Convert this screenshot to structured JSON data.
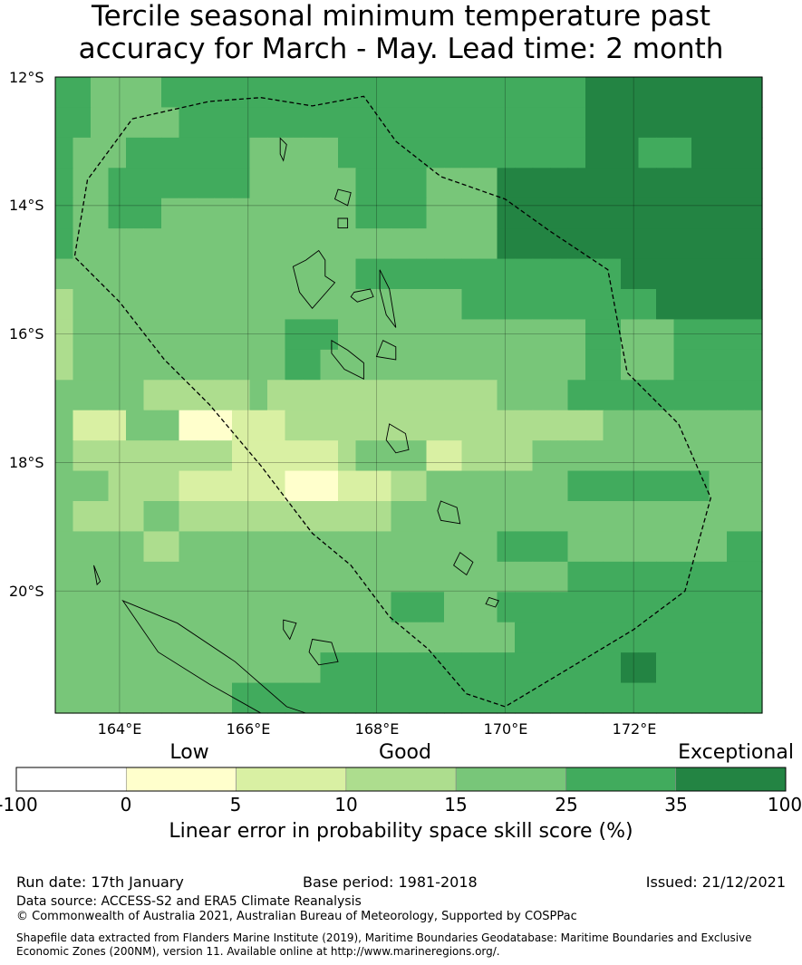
{
  "title": {
    "line1": "Tercile seasonal minimum temperature past",
    "line2": "accuracy for March - May. Lead time: 2 month"
  },
  "map": {
    "lon_range": [
      163,
      174
    ],
    "lat_range": [
      -21.9,
      -12
    ],
    "lat_labels": [
      "12°S",
      "14°S",
      "16°S",
      "18°S",
      "20°S"
    ],
    "lon_labels": [
      "164°E",
      "166°E",
      "168°E",
      "170°E",
      "172°E"
    ],
    "colors": [
      "#ffffff",
      "#ffffcc",
      "#d9f0a3",
      "#addd8e",
      "#78c679",
      "#41ab5d",
      "#238443"
    ],
    "grid": [
      [
        5,
        5,
        4,
        4,
        4,
        4,
        5,
        5,
        5,
        5,
        5,
        5,
        5,
        5,
        5,
        5,
        5,
        5,
        5,
        5,
        5,
        5,
        5,
        5,
        5,
        5,
        5,
        5,
        5,
        5,
        6,
        6,
        6,
        6,
        6,
        6,
        6,
        6,
        6,
        6
      ],
      [
        5,
        5,
        4,
        4,
        4,
        4,
        4,
        5,
        5,
        5,
        5,
        5,
        5,
        5,
        5,
        5,
        5,
        5,
        5,
        5,
        5,
        5,
        5,
        5,
        5,
        5,
        5,
        5,
        5,
        5,
        6,
        6,
        6,
        6,
        6,
        6,
        6,
        6,
        6,
        6
      ],
      [
        5,
        4,
        4,
        4,
        5,
        5,
        5,
        5,
        5,
        5,
        5,
        4,
        4,
        4,
        4,
        4,
        5,
        5,
        5,
        5,
        5,
        5,
        5,
        5,
        5,
        5,
        5,
        5,
        5,
        5,
        6,
        6,
        6,
        5,
        5,
        5,
        6,
        6,
        6,
        6
      ],
      [
        5,
        4,
        4,
        5,
        5,
        5,
        5,
        5,
        5,
        5,
        5,
        4,
        4,
        4,
        4,
        4,
        4,
        5,
        5,
        5,
        5,
        4,
        4,
        4,
        4,
        6,
        6,
        6,
        6,
        6,
        6,
        6,
        6,
        6,
        6,
        6,
        6,
        6,
        6,
        6
      ],
      [
        5,
        4,
        4,
        5,
        5,
        5,
        4,
        4,
        4,
        4,
        4,
        4,
        4,
        4,
        4,
        4,
        4,
        5,
        5,
        5,
        5,
        4,
        4,
        4,
        4,
        6,
        6,
        6,
        6,
        6,
        6,
        6,
        6,
        6,
        6,
        6,
        6,
        6,
        6,
        6
      ],
      [
        5,
        4,
        4,
        4,
        4,
        4,
        4,
        4,
        4,
        4,
        4,
        4,
        4,
        4,
        4,
        4,
        4,
        4,
        4,
        4,
        4,
        4,
        4,
        4,
        4,
        6,
        6,
        6,
        6,
        6,
        6,
        6,
        6,
        6,
        6,
        6,
        6,
        6,
        6,
        6
      ],
      [
        4,
        4,
        4,
        4,
        4,
        4,
        4,
        4,
        4,
        4,
        4,
        4,
        4,
        4,
        4,
        4,
        4,
        5,
        5,
        5,
        5,
        5,
        5,
        5,
        5,
        5,
        5,
        5,
        5,
        5,
        5,
        5,
        6,
        6,
        6,
        6,
        6,
        6,
        6,
        6
      ],
      [
        3,
        4,
        4,
        4,
        4,
        4,
        4,
        4,
        4,
        4,
        4,
        4,
        4,
        4,
        4,
        4,
        4,
        4,
        4,
        4,
        4,
        4,
        4,
        5,
        5,
        5,
        5,
        5,
        5,
        5,
        5,
        5,
        5,
        5,
        6,
        6,
        6,
        6,
        6,
        6
      ],
      [
        3,
        4,
        4,
        4,
        4,
        4,
        4,
        4,
        4,
        4,
        4,
        4,
        4,
        5,
        5,
        5,
        4,
        4,
        4,
        4,
        4,
        4,
        4,
        4,
        4,
        4,
        4,
        4,
        4,
        4,
        5,
        5,
        4,
        4,
        4,
        5,
        5,
        5,
        5,
        5
      ],
      [
        3,
        4,
        4,
        4,
        4,
        4,
        4,
        4,
        4,
        4,
        4,
        4,
        4,
        5,
        5,
        4,
        4,
        4,
        4,
        4,
        4,
        4,
        4,
        4,
        4,
        4,
        4,
        4,
        4,
        4,
        5,
        5,
        4,
        4,
        4,
        5,
        5,
        5,
        5,
        5
      ],
      [
        4,
        4,
        4,
        4,
        4,
        3,
        3,
        3,
        3,
        3,
        3,
        4,
        3,
        3,
        3,
        3,
        3,
        3,
        3,
        3,
        3,
        3,
        3,
        3,
        3,
        4,
        4,
        4,
        4,
        5,
        5,
        5,
        5,
        5,
        5,
        5,
        5,
        5,
        5,
        5
      ],
      [
        4,
        2,
        2,
        2,
        4,
        4,
        4,
        1,
        1,
        1,
        2,
        2,
        2,
        3,
        3,
        3,
        3,
        3,
        3,
        3,
        3,
        3,
        3,
        3,
        3,
        3,
        3,
        3,
        3,
        3,
        3,
        4,
        4,
        4,
        4,
        4,
        4,
        4,
        4,
        4
      ],
      [
        4,
        3,
        3,
        3,
        3,
        3,
        3,
        3,
        3,
        3,
        2,
        2,
        2,
        2,
        2,
        2,
        3,
        4,
        4,
        4,
        4,
        2,
        2,
        3,
        3,
        3,
        3,
        4,
        4,
        4,
        4,
        4,
        4,
        4,
        4,
        4,
        4,
        4,
        4,
        4
      ],
      [
        4,
        4,
        4,
        3,
        3,
        3,
        3,
        2,
        2,
        2,
        2,
        2,
        2,
        1,
        1,
        1,
        2,
        2,
        2,
        3,
        3,
        4,
        4,
        4,
        4,
        4,
        4,
        4,
        4,
        5,
        5,
        5,
        5,
        5,
        5,
        5,
        5,
        4,
        4,
        4
      ],
      [
        4,
        3,
        3,
        3,
        3,
        4,
        4,
        3,
        3,
        3,
        3,
        3,
        3,
        3,
        3,
        3,
        3,
        3,
        3,
        4,
        4,
        4,
        4,
        4,
        4,
        4,
        4,
        4,
        4,
        4,
        4,
        4,
        4,
        4,
        4,
        4,
        4,
        4,
        4,
        4
      ],
      [
        4,
        4,
        4,
        4,
        4,
        3,
        3,
        4,
        4,
        4,
        4,
        4,
        4,
        4,
        4,
        4,
        4,
        4,
        4,
        4,
        4,
        4,
        4,
        4,
        4,
        5,
        5,
        5,
        5,
        4,
        4,
        4,
        4,
        4,
        4,
        4,
        4,
        4,
        5,
        5
      ],
      [
        4,
        4,
        4,
        4,
        4,
        4,
        4,
        4,
        4,
        4,
        4,
        4,
        4,
        4,
        4,
        4,
        4,
        4,
        4,
        4,
        4,
        4,
        4,
        4,
        4,
        4,
        4,
        4,
        4,
        5,
        5,
        5,
        5,
        5,
        5,
        5,
        5,
        5,
        5,
        5
      ],
      [
        4,
        4,
        4,
        4,
        4,
        4,
        4,
        4,
        4,
        4,
        4,
        4,
        4,
        4,
        4,
        4,
        4,
        4,
        4,
        5,
        5,
        5,
        4,
        4,
        4,
        5,
        5,
        5,
        5,
        5,
        5,
        5,
        5,
        5,
        5,
        5,
        5,
        5,
        5,
        5
      ],
      [
        4,
        4,
        4,
        4,
        4,
        4,
        4,
        4,
        4,
        4,
        4,
        4,
        4,
        4,
        4,
        4,
        4,
        4,
        4,
        4,
        4,
        4,
        4,
        4,
        4,
        4,
        5,
        5,
        5,
        5,
        5,
        5,
        5,
        5,
        5,
        5,
        5,
        5,
        5,
        5
      ],
      [
        4,
        4,
        4,
        4,
        4,
        4,
        4,
        4,
        4,
        4,
        4,
        4,
        4,
        4,
        4,
        5,
        5,
        5,
        5,
        5,
        5,
        5,
        5,
        5,
        5,
        5,
        5,
        5,
        5,
        5,
        5,
        5,
        6,
        6,
        5,
        5,
        5,
        5,
        5,
        5
      ],
      [
        4,
        4,
        4,
        4,
        4,
        4,
        4,
        4,
        4,
        4,
        5,
        5,
        5,
        5,
        5,
        5,
        5,
        5,
        5,
        5,
        5,
        5,
        5,
        5,
        5,
        5,
        5,
        5,
        5,
        5,
        5,
        5,
        5,
        5,
        5,
        5,
        5,
        5,
        5,
        5
      ]
    ],
    "eez_boundary": [
      [
        164.2,
        -12.65
      ],
      [
        165.4,
        -12.38
      ],
      [
        166.2,
        -12.32
      ],
      [
        167.0,
        -12.45
      ],
      [
        167.8,
        -12.3
      ],
      [
        168.3,
        -13.0
      ],
      [
        169.0,
        -13.55
      ],
      [
        170.0,
        -13.9
      ],
      [
        170.7,
        -14.4
      ],
      [
        171.6,
        -15.0
      ],
      [
        171.9,
        -16.6
      ],
      [
        172.7,
        -17.4
      ],
      [
        173.2,
        -18.55
      ],
      [
        172.8,
        -20.0
      ],
      [
        172.0,
        -20.6
      ],
      [
        171.0,
        -21.2
      ],
      [
        170.0,
        -21.8
      ],
      [
        169.4,
        -21.6
      ],
      [
        168.8,
        -20.9
      ],
      [
        168.2,
        -20.4
      ],
      [
        167.6,
        -19.6
      ],
      [
        167.0,
        -19.1
      ],
      [
        166.2,
        -18.05
      ],
      [
        165.4,
        -17.1
      ],
      [
        164.7,
        -16.4
      ],
      [
        164.0,
        -15.5
      ],
      [
        163.3,
        -14.8
      ],
      [
        163.5,
        -13.6
      ],
      [
        164.2,
        -12.65
      ]
    ],
    "islands": [
      [
        [
          167.1,
          -14.7
        ],
        [
          167.2,
          -14.85
        ],
        [
          167.2,
          -15.1
        ],
        [
          167.35,
          -15.2
        ],
        [
          167.0,
          -15.6
        ],
        [
          166.8,
          -15.35
        ],
        [
          166.7,
          -14.95
        ],
        [
          166.9,
          -14.85
        ],
        [
          167.1,
          -14.7
        ]
      ],
      [
        [
          168.05,
          -15.0
        ],
        [
          168.2,
          -15.3
        ],
        [
          168.3,
          -15.9
        ],
        [
          168.15,
          -15.7
        ],
        [
          168.05,
          -15.3
        ],
        [
          168.05,
          -15.0
        ]
      ],
      [
        [
          167.65,
          -15.35
        ],
        [
          167.9,
          -15.3
        ],
        [
          167.95,
          -15.42
        ],
        [
          167.7,
          -15.5
        ],
        [
          167.6,
          -15.42
        ],
        [
          167.65,
          -15.35
        ]
      ],
      [
        [
          167.3,
          -16.1
        ],
        [
          167.55,
          -16.25
        ],
        [
          167.8,
          -16.45
        ],
        [
          167.8,
          -16.7
        ],
        [
          167.5,
          -16.55
        ],
        [
          167.3,
          -16.3
        ],
        [
          167.3,
          -16.1
        ]
      ],
      [
        [
          168.1,
          -16.1
        ],
        [
          168.3,
          -16.2
        ],
        [
          168.3,
          -16.4
        ],
        [
          168.0,
          -16.35
        ],
        [
          168.1,
          -16.1
        ]
      ],
      [
        [
          168.2,
          -17.4
        ],
        [
          168.45,
          -17.55
        ],
        [
          168.5,
          -17.8
        ],
        [
          168.3,
          -17.85
        ],
        [
          168.15,
          -17.65
        ],
        [
          168.2,
          -17.4
        ]
      ],
      [
        [
          169.0,
          -18.6
        ],
        [
          169.25,
          -18.7
        ],
        [
          169.3,
          -18.95
        ],
        [
          169.0,
          -18.9
        ],
        [
          168.95,
          -18.75
        ],
        [
          169.0,
          -18.6
        ]
      ],
      [
        [
          169.3,
          -19.4
        ],
        [
          169.5,
          -19.55
        ],
        [
          169.4,
          -19.75
        ],
        [
          169.2,
          -19.6
        ],
        [
          169.3,
          -19.4
        ]
      ],
      [
        [
          169.75,
          -20.1
        ],
        [
          169.9,
          -20.15
        ],
        [
          169.85,
          -20.25
        ],
        [
          169.7,
          -20.2
        ],
        [
          169.75,
          -20.1
        ]
      ],
      [
        [
          166.5,
          -12.95
        ],
        [
          166.6,
          -13.05
        ],
        [
          166.55,
          -13.3
        ],
        [
          166.5,
          -13.2
        ],
        [
          166.5,
          -12.95
        ]
      ],
      [
        [
          167.4,
          -13.75
        ],
        [
          167.6,
          -13.8
        ],
        [
          167.55,
          -14.0
        ],
        [
          167.35,
          -13.9
        ],
        [
          167.4,
          -13.75
        ]
      ],
      [
        [
          167.4,
          -14.2
        ],
        [
          167.55,
          -14.2
        ],
        [
          167.55,
          -14.35
        ],
        [
          167.4,
          -14.35
        ],
        [
          167.4,
          -14.2
        ]
      ],
      [
        [
          164.05,
          -20.15
        ],
        [
          164.9,
          -20.5
        ],
        [
          165.8,
          -21.1
        ],
        [
          166.6,
          -21.8
        ],
        [
          166.9,
          -21.9
        ],
        [
          166.2,
          -21.9
        ],
        [
          165.4,
          -21.45
        ],
        [
          164.6,
          -20.95
        ],
        [
          164.05,
          -20.15
        ]
      ],
      [
        [
          166.55,
          -20.45
        ],
        [
          166.75,
          -20.5
        ],
        [
          166.65,
          -20.75
        ],
        [
          166.55,
          -20.6
        ],
        [
          166.55,
          -20.45
        ]
      ],
      [
        [
          167.0,
          -20.75
        ],
        [
          167.3,
          -20.8
        ],
        [
          167.4,
          -21.1
        ],
        [
          167.1,
          -21.15
        ],
        [
          166.95,
          -20.95
        ],
        [
          167.0,
          -20.75
        ]
      ],
      [
        [
          163.6,
          -19.6
        ],
        [
          163.7,
          -19.85
        ],
        [
          163.65,
          -19.9
        ],
        [
          163.6,
          -19.6
        ]
      ]
    ]
  },
  "legend": {
    "categories": [
      "Low",
      "Good",
      "Exceptional"
    ],
    "ticks": [
      "-100",
      "0",
      "5",
      "10",
      "15",
      "25",
      "35",
      "100"
    ],
    "colors": [
      "#ffffff",
      "#ffffcc",
      "#d9f0a3",
      "#addd8e",
      "#78c679",
      "#41ab5d",
      "#238443"
    ],
    "title": "Linear error in probability space skill score (%)"
  },
  "footer": {
    "run_date": "Run date: 17th January",
    "base_period": "Base period: 1981-2018",
    "issued": "Issued: 21/12/2021",
    "data_source": "Data source: ACCESS-S2 and ERA5 Climate Reanalysis",
    "copyright": "© Commonwealth of Australia 2021, Australian Bureau of Meteorology, Supported by COSPPac",
    "shapefile": "Shapefile data extracted from Flanders Marine Institute (2019), Maritime Boundaries Geodatabase: Maritime Boundaries and Exclusive Economic Zones (200NM), version 11. Available online at http://www.marineregions.org/."
  }
}
